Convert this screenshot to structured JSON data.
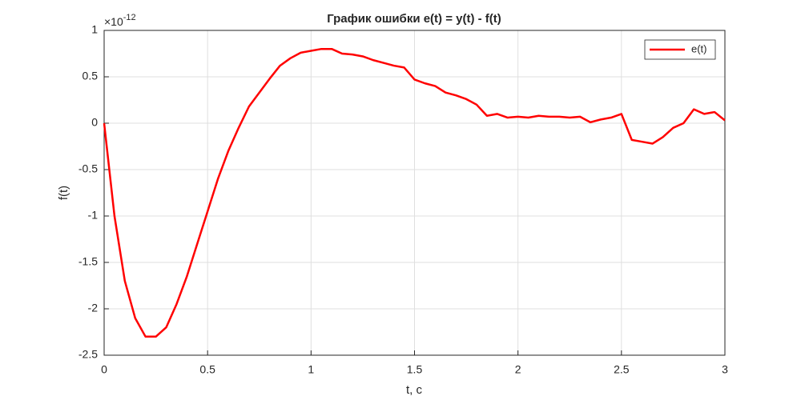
{
  "chart_data": {
    "type": "line",
    "title": "График ошибки e(t) = y(t) - f(t)",
    "x_label": "t, c",
    "y_label": "f(t)",
    "y_multiplier": {
      "base": "×10",
      "exponent": "-12"
    },
    "x": [
      0,
      0.05,
      0.1,
      0.15,
      0.2,
      0.25,
      0.3,
      0.35,
      0.4,
      0.45,
      0.5,
      0.55,
      0.6,
      0.65,
      0.7,
      0.75,
      0.8,
      0.85,
      0.9,
      0.95,
      1,
      1.05,
      1.1,
      1.15,
      1.2,
      1.25,
      1.3,
      1.35,
      1.4,
      1.45,
      1.5,
      1.55,
      1.6,
      1.65,
      1.7,
      1.75,
      1.8,
      1.85,
      1.9,
      1.95,
      2,
      2.05,
      2.1,
      2.15,
      2.2,
      2.25,
      2.3,
      2.35,
      2.4,
      2.45,
      2.5,
      2.55,
      2.6,
      2.65,
      2.7,
      2.75,
      2.8,
      2.85,
      2.9,
      2.95,
      3
    ],
    "series": [
      {
        "name": "e(t)",
        "color": "#ff0000",
        "values": [
          0,
          -1.0,
          -1.7,
          -2.1,
          -2.3,
          -2.3,
          -2.2,
          -1.95,
          -1.65,
          -1.3,
          -0.95,
          -0.6,
          -0.3,
          -0.05,
          0.18,
          0.33,
          0.48,
          0.62,
          0.7,
          0.76,
          0.78,
          0.8,
          0.8,
          0.75,
          0.74,
          0.72,
          0.68,
          0.65,
          0.62,
          0.6,
          0.47,
          0.43,
          0.4,
          0.33,
          0.3,
          0.26,
          0.2,
          0.08,
          0.1,
          0.06,
          0.07,
          0.06,
          0.08,
          0.07,
          0.07,
          0.06,
          0.07,
          0.01,
          0.04,
          0.06,
          0.1,
          -0.18,
          -0.2,
          -0.22,
          -0.15,
          -0.05,
          0,
          0.15,
          0.1,
          0.12,
          0.03
        ]
      }
    ],
    "xlim": [
      0,
      3
    ],
    "ylim": [
      -2.5,
      1
    ],
    "xticks": [
      0,
      0.5,
      1,
      1.5,
      2,
      2.5,
      3
    ],
    "yticks": [
      -2.5,
      -2,
      -1.5,
      -1,
      -0.5,
      0,
      0.5,
      1
    ],
    "grid": true,
    "legend": "upper right"
  }
}
